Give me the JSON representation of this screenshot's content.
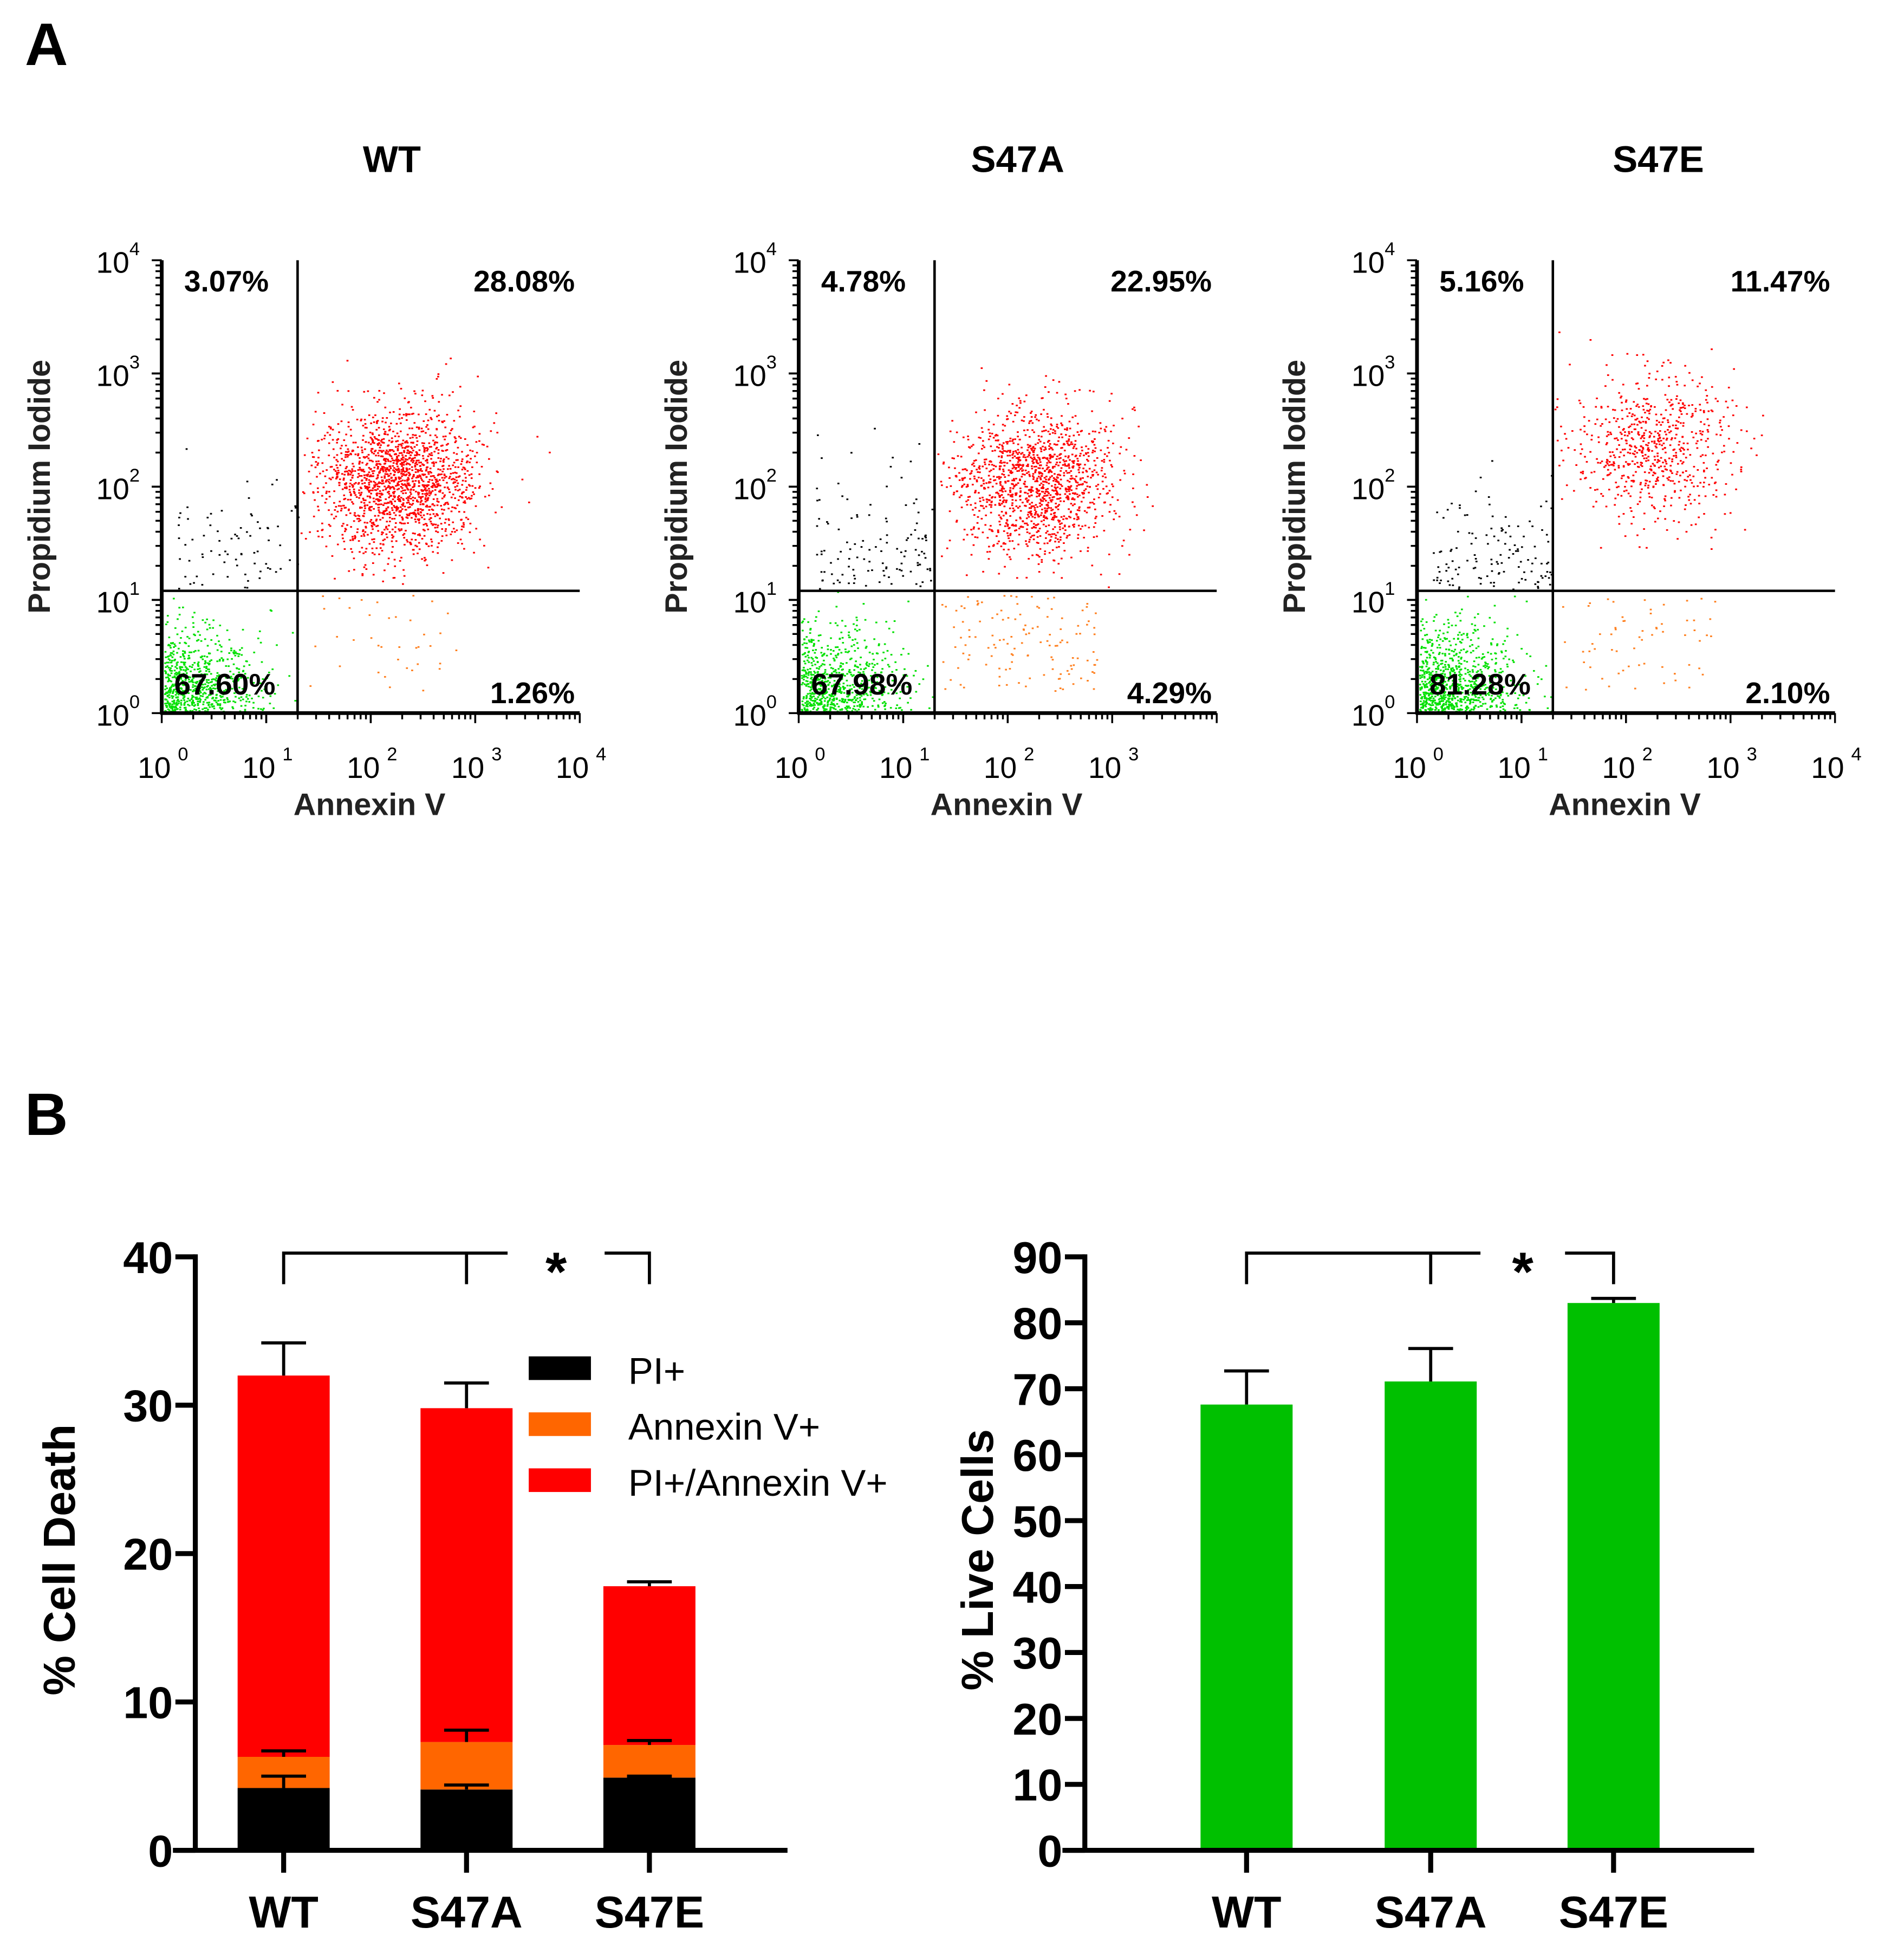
{
  "panel_labels": {
    "a": "A",
    "b": "B"
  },
  "chart_data": [
    {
      "type": "scatter",
      "subtype": "flow-cytometry-quadrant",
      "plots": [
        {
          "title": "WT",
          "quadrants": {
            "upper_left": "3.07%",
            "upper_right": "28.08%",
            "lower_left": "67.60%",
            "lower_right": "1.26%"
          },
          "x_max_tick": 4
        },
        {
          "title": "S47A",
          "quadrants": {
            "upper_left": "4.78%",
            "upper_right": "22.95%",
            "lower_left": "67.98%",
            "lower_right": "4.29%"
          },
          "x_max_tick": 3
        },
        {
          "title": "S47E",
          "quadrants": {
            "upper_left": "5.16%",
            "upper_right": "11.47%",
            "lower_left": "81.28%",
            "lower_right": "2.10%"
          },
          "x_max_tick": 4
        }
      ],
      "xlabel": "Annexin V",
      "ylabel": "Propidium Iodide",
      "tick_base": "10",
      "tick_exponents": [
        "0",
        "1",
        "2",
        "3",
        "4"
      ],
      "scale": "log",
      "xlim": [
        1,
        10000
      ],
      "ylim": [
        1,
        10000
      ],
      "colors": {
        "live": "#00e000",
        "pi": "#000000",
        "annexin": "#ff7f1e",
        "double": "#ff0000"
      }
    },
    {
      "type": "bar",
      "stacked": true,
      "categories": [
        "WT",
        "S47A",
        "S47E"
      ],
      "ylabel": "% Cell Death",
      "ylim": [
        0,
        40
      ],
      "yticks": [
        "0",
        "10",
        "20",
        "30",
        "40"
      ],
      "series": [
        {
          "name": "PI+",
          "color": "#000000",
          "values": [
            4.2,
            4.1,
            4.9
          ],
          "errors": [
            0.8,
            0.3,
            0.1
          ]
        },
        {
          "name": "Annexin V+",
          "color": "#ff6600",
          "values": [
            2.1,
            3.2,
            2.2
          ],
          "errors": [
            0.4,
            0.8,
            0.3
          ]
        },
        {
          "name": "PI+/Annexin V+",
          "color": "#ff0000",
          "values": [
            25.7,
            22.5,
            10.7
          ],
          "errors": [
            2.2,
            1.7,
            0.3
          ]
        }
      ],
      "significance": "*",
      "legend": "top-right"
    },
    {
      "type": "bar",
      "categories": [
        "WT",
        "S47A",
        "S47E"
      ],
      "ylabel": "% Live Cells",
      "ylim": [
        0,
        90
      ],
      "yticks": [
        "0",
        "10",
        "20",
        "30",
        "40",
        "50",
        "60",
        "70",
        "80",
        "90"
      ],
      "series": [
        {
          "name": "Live",
          "color": "#00c000",
          "values": [
            67.6,
            71.1,
            83.0
          ],
          "errors": [
            5.1,
            5.0,
            0.7
          ]
        }
      ],
      "significance": "*"
    }
  ]
}
